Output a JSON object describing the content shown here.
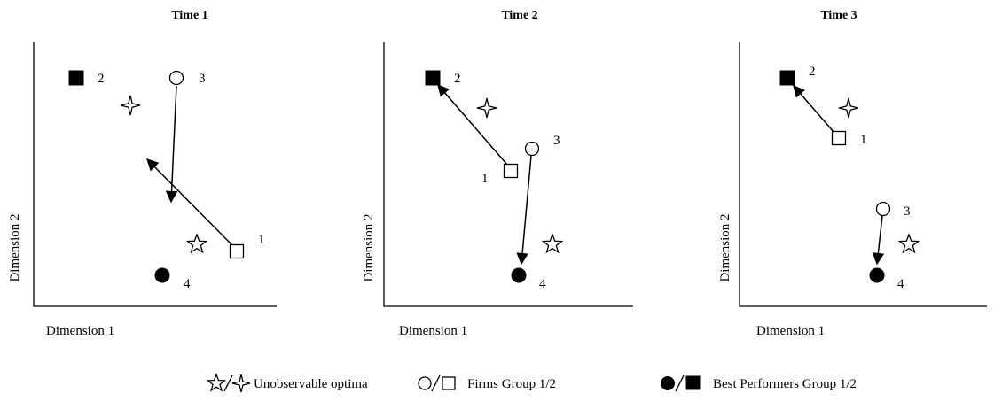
{
  "legend": {
    "optima": "Unobservable optima",
    "firms": "Firms Group 1/2",
    "best": "Best Performers Group 1/2",
    "optima_icon": "star-pair-icon",
    "firms_icon": "circle-square-icon",
    "best_icon": "filled-circle-square-icon"
  },
  "panels": [
    {
      "title": "Time 1",
      "xlabel": "Dimension 1",
      "ylabel": "Dimension 2",
      "points": [
        {
          "kind": "square-filled",
          "label": "2"
        },
        {
          "kind": "circle-hollow",
          "label": "3"
        },
        {
          "kind": "star-4",
          "label": ""
        },
        {
          "kind": "star-5",
          "label": ""
        },
        {
          "kind": "square-hollow",
          "label": "1"
        },
        {
          "kind": "circle-filled",
          "label": "4"
        }
      ],
      "arrows": [
        {
          "from": "circle-3",
          "to": "toward-4"
        },
        {
          "from": "square-1",
          "to": "toward-2"
        }
      ]
    },
    {
      "title": "Time 2",
      "xlabel": "Dimension 1",
      "ylabel": "Dimension 2",
      "points": [
        {
          "kind": "square-filled",
          "label": "2"
        },
        {
          "kind": "star-4",
          "label": ""
        },
        {
          "kind": "circle-hollow",
          "label": "3"
        },
        {
          "kind": "square-hollow",
          "label": "1"
        },
        {
          "kind": "star-5",
          "label": ""
        },
        {
          "kind": "circle-filled",
          "label": "4"
        }
      ],
      "arrows": [
        {
          "from": "square-1",
          "to": "square-2"
        },
        {
          "from": "circle-3",
          "to": "circle-4"
        }
      ]
    },
    {
      "title": "Time 3",
      "xlabel": "Dimension 1",
      "ylabel": "Dimension 2",
      "points": [
        {
          "kind": "square-filled",
          "label": "2"
        },
        {
          "kind": "star-4",
          "label": ""
        },
        {
          "kind": "square-hollow",
          "label": "1"
        },
        {
          "kind": "circle-hollow",
          "label": "3"
        },
        {
          "kind": "star-5",
          "label": ""
        },
        {
          "kind": "circle-filled",
          "label": "4"
        }
      ],
      "arrows": [
        {
          "from": "square-1",
          "to": "square-2"
        },
        {
          "from": "circle-3",
          "to": "circle-4"
        }
      ]
    }
  ]
}
